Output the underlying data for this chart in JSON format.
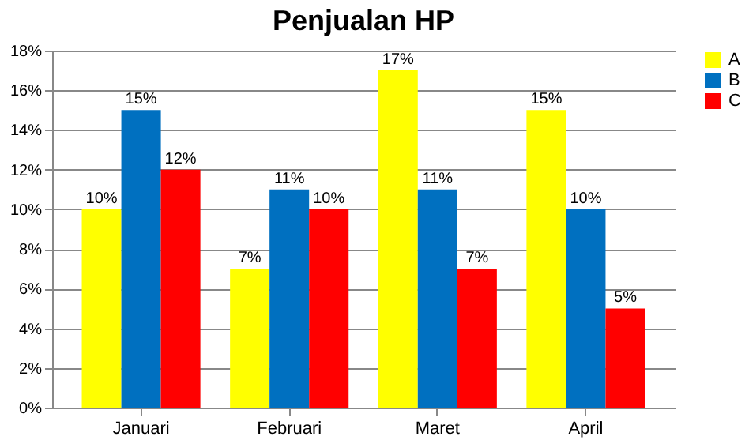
{
  "chart_data": {
    "type": "bar",
    "title": "Penjualan HP",
    "categories": [
      "Januari",
      "Februari",
      "Maret",
      "April"
    ],
    "series": [
      {
        "name": "A",
        "color": "#ffff00",
        "values": [
          10,
          7,
          17,
          15
        ],
        "value_labels": [
          "10%",
          "7%",
          "17%",
          "15%"
        ]
      },
      {
        "name": "B",
        "color": "#0070c0",
        "values": [
          15,
          11,
          11,
          10
        ],
        "value_labels": [
          "15%",
          "11%",
          "11%",
          "10%"
        ]
      },
      {
        "name": "C",
        "color": "#ff0000",
        "values": [
          12,
          10,
          7,
          5
        ],
        "value_labels": [
          "12%",
          "10%",
          "7%",
          "5%"
        ]
      }
    ],
    "ylim": [
      0,
      18
    ],
    "yticks": [
      {
        "value": 0,
        "label": "0%"
      },
      {
        "value": 2,
        "label": "2%"
      },
      {
        "value": 4,
        "label": "4%"
      },
      {
        "value": 6,
        "label": "6%"
      },
      {
        "value": 8,
        "label": "8%"
      },
      {
        "value": 10,
        "label": "10%"
      },
      {
        "value": 12,
        "label": "12%"
      },
      {
        "value": 14,
        "label": "14%"
      },
      {
        "value": 16,
        "label": "16%"
      },
      {
        "value": 18,
        "label": "18%"
      }
    ],
    "grid": "y",
    "legend": "right"
  }
}
